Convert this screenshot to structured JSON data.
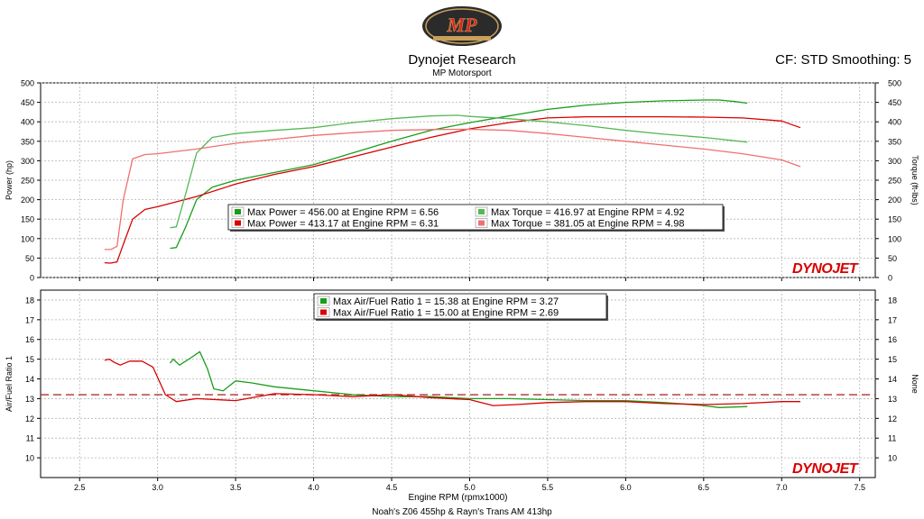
{
  "header": {
    "title": "Dynojet Research",
    "subtitle": "MP Motorsport",
    "settings": "CF: STD Smoothing: 5",
    "footer": "Noah's Z06 455hp & Rayn's Trans AM 413hp",
    "brand": "DYNOJET",
    "logo": "MP"
  },
  "colors": {
    "green": "#1a9e1a",
    "red": "#d80000",
    "light_green": "#55b855",
    "light_red": "#f07070",
    "grid": "#b4b4b4",
    "brand": "#d80000"
  },
  "chart_data": [
    {
      "type": "line",
      "name": "power-torque",
      "xlim": [
        2.25,
        7.6
      ],
      "ylim": [
        0,
        500
      ],
      "yticks": [
        0,
        50,
        100,
        150,
        200,
        250,
        300,
        350,
        400,
        450,
        500
      ],
      "ylabel": "Power (hp)",
      "ylabel_right": "Torque (ft-lbs)",
      "legend": [
        {
          "text": "Max Power = 456.00 at Engine RPM = 6.56",
          "color": "#1a9e1a"
        },
        {
          "text": "Max Power = 413.17 at Engine RPM = 6.31",
          "color": "#d80000"
        },
        {
          "text": "Max Torque = 416.97 at Engine RPM = 4.92",
          "color": "#55b855"
        },
        {
          "text": "Max Torque = 381.05 at Engine RPM = 4.98",
          "color": "#f07070"
        }
      ],
      "series": [
        {
          "color": "#1a9e1a",
          "points": [
            [
              3.08,
              75
            ],
            [
              3.12,
              77
            ],
            [
              3.18,
              130
            ],
            [
              3.25,
              200
            ],
            [
              3.35,
              232
            ],
            [
              3.5,
              250
            ],
            [
              3.75,
              270
            ],
            [
              4.0,
              290
            ],
            [
              4.25,
              320
            ],
            [
              4.5,
              350
            ],
            [
              4.75,
              378
            ],
            [
              5.0,
              398
            ],
            [
              5.25,
              415
            ],
            [
              5.5,
              432
            ],
            [
              5.75,
              443
            ],
            [
              6.0,
              450
            ],
            [
              6.25,
              454
            ],
            [
              6.5,
              456
            ],
            [
              6.6,
              456
            ],
            [
              6.7,
              452
            ],
            [
              6.78,
              448
            ]
          ]
        },
        {
          "color": "#d80000",
          "points": [
            [
              2.66,
              38
            ],
            [
              2.7,
              37
            ],
            [
              2.74,
              40
            ],
            [
              2.78,
              85
            ],
            [
              2.84,
              150
            ],
            [
              2.92,
              175
            ],
            [
              3.0,
              182
            ],
            [
              3.25,
              208
            ],
            [
              3.5,
              240
            ],
            [
              3.75,
              265
            ],
            [
              4.0,
              285
            ],
            [
              4.25,
              310
            ],
            [
              4.5,
              335
            ],
            [
              4.75,
              360
            ],
            [
              5.0,
              382
            ],
            [
              5.25,
              398
            ],
            [
              5.5,
              410
            ],
            [
              5.75,
              413
            ],
            [
              6.0,
              413
            ],
            [
              6.25,
              413
            ],
            [
              6.5,
              412
            ],
            [
              6.75,
              410
            ],
            [
              7.0,
              402
            ],
            [
              7.12,
              385
            ]
          ]
        },
        {
          "color": "#55b855",
          "points": [
            [
              3.08,
              128
            ],
            [
              3.12,
              130
            ],
            [
              3.18,
              215
            ],
            [
              3.25,
              320
            ],
            [
              3.35,
              360
            ],
            [
              3.5,
              370
            ],
            [
              3.75,
              378
            ],
            [
              4.0,
              385
            ],
            [
              4.25,
              398
            ],
            [
              4.5,
              408
            ],
            [
              4.75,
              415
            ],
            [
              4.92,
              417
            ],
            [
              5.0,
              414
            ],
            [
              5.25,
              408
            ],
            [
              5.5,
              400
            ],
            [
              5.75,
              390
            ],
            [
              6.0,
              378
            ],
            [
              6.25,
              368
            ],
            [
              6.5,
              360
            ],
            [
              6.78,
              348
            ]
          ]
        },
        {
          "color": "#f07070",
          "points": [
            [
              2.66,
              72
            ],
            [
              2.7,
              72
            ],
            [
              2.74,
              80
            ],
            [
              2.78,
              200
            ],
            [
              2.84,
              305
            ],
            [
              2.92,
              316
            ],
            [
              3.0,
              318
            ],
            [
              3.25,
              330
            ],
            [
              3.5,
              345
            ],
            [
              3.75,
              355
            ],
            [
              4.0,
              365
            ],
            [
              4.25,
              372
            ],
            [
              4.5,
              378
            ],
            [
              4.75,
              380
            ],
            [
              4.98,
              381
            ],
            [
              5.25,
              378
            ],
            [
              5.5,
              370
            ],
            [
              5.75,
              360
            ],
            [
              6.0,
              350
            ],
            [
              6.25,
              340
            ],
            [
              6.5,
              330
            ],
            [
              6.75,
              318
            ],
            [
              7.0,
              302
            ],
            [
              7.12,
              285
            ]
          ]
        }
      ]
    },
    {
      "type": "line",
      "name": "air-fuel",
      "xlim": [
        2.25,
        7.6
      ],
      "ylim": [
        9,
        18.5
      ],
      "yticks": [
        10,
        11,
        12,
        13,
        14,
        15,
        16,
        17,
        18
      ],
      "xticks": [
        2.5,
        3.0,
        3.5,
        4.0,
        4.5,
        5.0,
        5.5,
        6.0,
        6.5,
        7.0,
        7.5
      ],
      "xlabel": "Engine RPM (rpmx1000)",
      "ylabel": "Air/Fuel Ratio 1",
      "ylabel_right": "None",
      "reference_line": 13.2,
      "legend": [
        {
          "text": "Max Air/Fuel Ratio 1 = 15.38 at Engine RPM = 3.27",
          "color": "#1a9e1a"
        },
        {
          "text": "Max Air/Fuel Ratio 1 = 15.00 at Engine RPM = 2.69",
          "color": "#d80000"
        }
      ],
      "series": [
        {
          "color": "#1a9e1a",
          "points": [
            [
              3.08,
              14.8
            ],
            [
              3.1,
              15.0
            ],
            [
              3.14,
              14.7
            ],
            [
              3.2,
              15.0
            ],
            [
              3.27,
              15.38
            ],
            [
              3.32,
              14.5
            ],
            [
              3.36,
              13.5
            ],
            [
              3.42,
              13.4
            ],
            [
              3.5,
              13.9
            ],
            [
              3.6,
              13.8
            ],
            [
              3.75,
              13.6
            ],
            [
              4.0,
              13.4
            ],
            [
              4.25,
              13.2
            ],
            [
              4.5,
              13.1
            ],
            [
              4.75,
              13.1
            ],
            [
              5.0,
              13.0
            ],
            [
              5.25,
              13.0
            ],
            [
              5.5,
              12.95
            ],
            [
              5.75,
              12.9
            ],
            [
              6.0,
              12.9
            ],
            [
              6.25,
              12.8
            ],
            [
              6.5,
              12.65
            ],
            [
              6.6,
              12.55
            ],
            [
              6.78,
              12.6
            ]
          ]
        },
        {
          "color": "#d80000",
          "points": [
            [
              2.66,
              14.95
            ],
            [
              2.69,
              15.0
            ],
            [
              2.72,
              14.85
            ],
            [
              2.76,
              14.7
            ],
            [
              2.82,
              14.9
            ],
            [
              2.9,
              14.9
            ],
            [
              2.97,
              14.6
            ],
            [
              3.05,
              13.2
            ],
            [
              3.12,
              12.85
            ],
            [
              3.25,
              13.0
            ],
            [
              3.5,
              12.9
            ],
            [
              3.75,
              13.25
            ],
            [
              4.0,
              13.2
            ],
            [
              4.25,
              13.1
            ],
            [
              4.5,
              13.2
            ],
            [
              4.75,
              13.05
            ],
            [
              5.0,
              12.95
            ],
            [
              5.15,
              12.65
            ],
            [
              5.3,
              12.7
            ],
            [
              5.5,
              12.8
            ],
            [
              5.75,
              12.85
            ],
            [
              6.0,
              12.85
            ],
            [
              6.25,
              12.75
            ],
            [
              6.5,
              12.7
            ],
            [
              6.75,
              12.75
            ],
            [
              7.0,
              12.85
            ],
            [
              7.12,
              12.85
            ]
          ]
        }
      ]
    }
  ]
}
